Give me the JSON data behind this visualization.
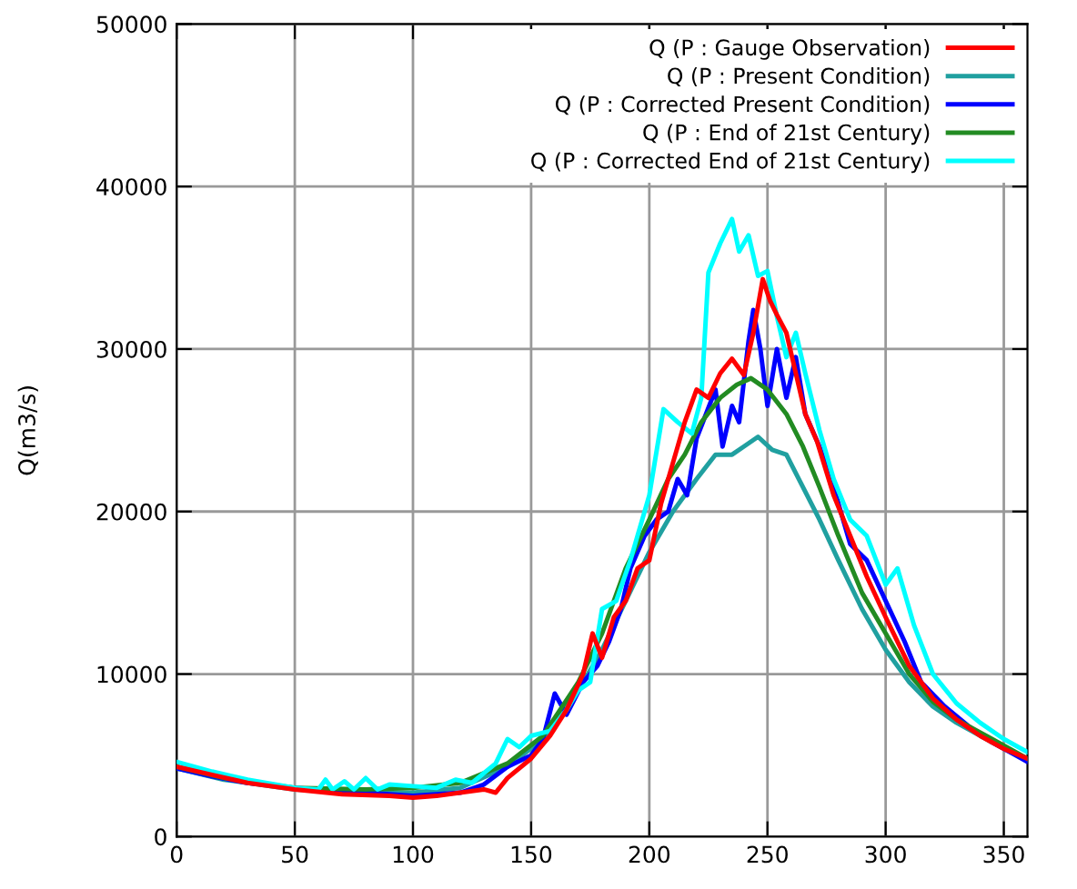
{
  "chart_data": {
    "type": "line",
    "ylabel": "Q(m3/s)",
    "xlim": [
      0,
      360
    ],
    "ylim": [
      0,
      50000
    ],
    "xticks": [
      0,
      50,
      100,
      150,
      200,
      250,
      300,
      350
    ],
    "yticks": [
      0,
      10000,
      20000,
      30000,
      40000,
      50000
    ],
    "grid": true,
    "legend": "top right",
    "marker": "none",
    "line_style": "solid",
    "series": [
      {
        "name": "Q (P : Gauge Observation)",
        "color": "#ff0000",
        "x": [
          0,
          15,
          30,
          50,
          70,
          90,
          100,
          110,
          120,
          130,
          135,
          140,
          150,
          158,
          165,
          172,
          176,
          180,
          185,
          190,
          195,
          200,
          205,
          210,
          215,
          220,
          225,
          230,
          235,
          240,
          244,
          248,
          251,
          254,
          258,
          262,
          266,
          271,
          278,
          285,
          292,
          300,
          310,
          320,
          330,
          340,
          350,
          360
        ],
        "values": [
          4300,
          3800,
          3300,
          2900,
          2600,
          2500,
          2400,
          2500,
          2700,
          2900,
          2700,
          3600,
          4800,
          6200,
          7800,
          10000,
          12500,
          11000,
          13500,
          14500,
          16500,
          17000,
          20500,
          23000,
          25500,
          27500,
          27000,
          28500,
          29400,
          28400,
          31000,
          34300,
          33000,
          32100,
          31000,
          28500,
          26000,
          24300,
          21000,
          18500,
          16000,
          13500,
          10500,
          8500,
          7200,
          6200,
          5400,
          4800
        ]
      },
      {
        "name": "Q (P : Present Condition)",
        "color": "#20a0a0",
        "x": [
          0,
          20,
          50,
          80,
          100,
          120,
          140,
          155,
          170,
          180,
          190,
          200,
          210,
          220,
          228,
          235,
          240,
          246,
          252,
          258,
          265,
          272,
          280,
          290,
          300,
          310,
          320,
          330,
          345,
          360
        ],
        "values": [
          4200,
          3500,
          2900,
          2700,
          2700,
          3000,
          4300,
          6000,
          9000,
          11500,
          14500,
          17500,
          20000,
          22000,
          23500,
          23500,
          24000,
          24600,
          23800,
          23500,
          21500,
          19500,
          17000,
          14000,
          11500,
          9500,
          8000,
          7000,
          5800,
          4700
        ]
      },
      {
        "name": "Q (P : Corrected Present Condition)",
        "color": "#0000ff",
        "x": [
          0,
          15,
          30,
          50,
          70,
          90,
          100,
          110,
          120,
          130,
          140,
          150,
          155,
          160,
          165,
          172,
          178,
          183,
          188,
          192,
          198,
          203,
          208,
          212,
          216,
          220,
          224,
          228,
          231,
          235,
          238,
          242,
          244,
          247,
          250,
          254,
          258,
          262,
          266,
          272,
          278,
          285,
          292,
          300,
          308,
          315,
          325,
          335,
          345,
          355,
          360
        ],
        "values": [
          4200,
          3700,
          3300,
          3000,
          2800,
          2600,
          2500,
          2600,
          2700,
          3200,
          4300,
          5000,
          6000,
          8800,
          7500,
          9500,
          10500,
          12000,
          14000,
          16500,
          18500,
          19500,
          20000,
          22000,
          21000,
          24500,
          26000,
          27500,
          24000,
          26500,
          25500,
          30500,
          32400,
          30000,
          26500,
          30000,
          27000,
          29500,
          26000,
          24000,
          21500,
          18000,
          17000,
          14500,
          12000,
          9500,
          8000,
          6800,
          5800,
          5000,
          4600
        ]
      },
      {
        "name": "Q (P : End of 21st Century)",
        "color": "#228b22",
        "x": [
          0,
          20,
          50,
          80,
          100,
          120,
          140,
          155,
          170,
          180,
          190,
          200,
          208,
          215,
          222,
          230,
          237,
          243,
          250,
          258,
          265,
          272,
          280,
          290,
          300,
          310,
          320,
          330,
          345,
          360
        ],
        "values": [
          4300,
          3600,
          3000,
          2900,
          3000,
          3300,
          4500,
          6200,
          9500,
          12500,
          16500,
          19500,
          22000,
          23500,
          25500,
          27000,
          27800,
          28200,
          27500,
          26000,
          24000,
          21500,
          18500,
          15000,
          12500,
          10000,
          8300,
          7200,
          6000,
          4800
        ]
      },
      {
        "name": "Q (P : Corrected End of 21st Century)",
        "color": "#00ffff",
        "x": [
          0,
          15,
          30,
          50,
          60,
          63,
          66,
          71,
          75,
          80,
          85,
          90,
          100,
          110,
          118,
          125,
          135,
          140,
          145,
          150,
          158,
          165,
          170,
          175,
          180,
          186,
          192,
          200,
          206,
          212,
          218,
          222,
          225,
          230,
          235,
          238,
          242,
          246,
          250,
          254,
          258,
          262,
          266,
          272,
          278,
          285,
          292,
          300,
          305,
          312,
          320,
          330,
          340,
          350,
          360
        ],
        "values": [
          4600,
          4000,
          3500,
          3000,
          2900,
          3500,
          2900,
          3400,
          2900,
          3600,
          2900,
          3200,
          3100,
          3000,
          3500,
          3300,
          4500,
          6000,
          5500,
          6200,
          6500,
          7800,
          9000,
          9500,
          14000,
          14500,
          17000,
          21000,
          26300,
          25500,
          24800,
          27000,
          34700,
          36500,
          38000,
          36000,
          37000,
          34500,
          34800,
          32000,
          29500,
          31000,
          28500,
          25000,
          22000,
          19500,
          18500,
          15500,
          16500,
          13000,
          10000,
          8200,
          7000,
          6000,
          5200
        ]
      }
    ]
  }
}
